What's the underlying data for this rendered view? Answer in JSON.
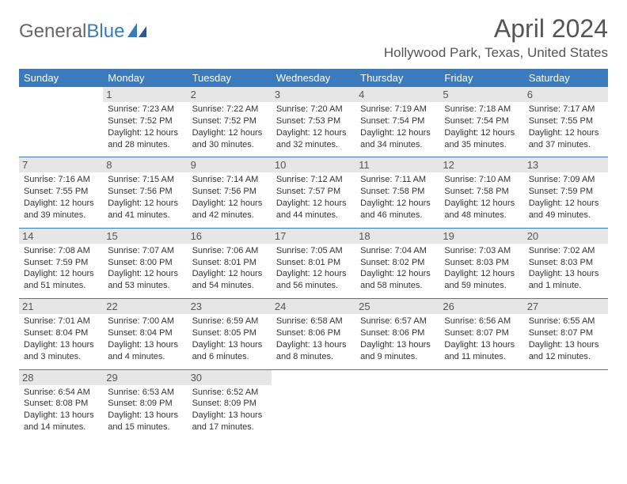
{
  "logo": {
    "part1": "General",
    "part2": "Blue"
  },
  "title": "April 2024",
  "location": "Hollywood Park, Texas, United States",
  "colors": {
    "header_bg": "#3a7abd",
    "header_text": "#ffffff",
    "daynum_bg": "#e6e6e6",
    "rule": "#3a7abd",
    "text": "#333333",
    "title_color": "#555555"
  },
  "weekdays": [
    "Sunday",
    "Monday",
    "Tuesday",
    "Wednesday",
    "Thursday",
    "Friday",
    "Saturday"
  ],
  "weeks": [
    [
      {
        "n": "",
        "sr": "",
        "ss": "",
        "dl": ""
      },
      {
        "n": "1",
        "sr": "Sunrise: 7:23 AM",
        "ss": "Sunset: 7:52 PM",
        "dl": "Daylight: 12 hours and 28 minutes."
      },
      {
        "n": "2",
        "sr": "Sunrise: 7:22 AM",
        "ss": "Sunset: 7:52 PM",
        "dl": "Daylight: 12 hours and 30 minutes."
      },
      {
        "n": "3",
        "sr": "Sunrise: 7:20 AM",
        "ss": "Sunset: 7:53 PM",
        "dl": "Daylight: 12 hours and 32 minutes."
      },
      {
        "n": "4",
        "sr": "Sunrise: 7:19 AM",
        "ss": "Sunset: 7:54 PM",
        "dl": "Daylight: 12 hours and 34 minutes."
      },
      {
        "n": "5",
        "sr": "Sunrise: 7:18 AM",
        "ss": "Sunset: 7:54 PM",
        "dl": "Daylight: 12 hours and 35 minutes."
      },
      {
        "n": "6",
        "sr": "Sunrise: 7:17 AM",
        "ss": "Sunset: 7:55 PM",
        "dl": "Daylight: 12 hours and 37 minutes."
      }
    ],
    [
      {
        "n": "7",
        "sr": "Sunrise: 7:16 AM",
        "ss": "Sunset: 7:55 PM",
        "dl": "Daylight: 12 hours and 39 minutes."
      },
      {
        "n": "8",
        "sr": "Sunrise: 7:15 AM",
        "ss": "Sunset: 7:56 PM",
        "dl": "Daylight: 12 hours and 41 minutes."
      },
      {
        "n": "9",
        "sr": "Sunrise: 7:14 AM",
        "ss": "Sunset: 7:56 PM",
        "dl": "Daylight: 12 hours and 42 minutes."
      },
      {
        "n": "10",
        "sr": "Sunrise: 7:12 AM",
        "ss": "Sunset: 7:57 PM",
        "dl": "Daylight: 12 hours and 44 minutes."
      },
      {
        "n": "11",
        "sr": "Sunrise: 7:11 AM",
        "ss": "Sunset: 7:58 PM",
        "dl": "Daylight: 12 hours and 46 minutes."
      },
      {
        "n": "12",
        "sr": "Sunrise: 7:10 AM",
        "ss": "Sunset: 7:58 PM",
        "dl": "Daylight: 12 hours and 48 minutes."
      },
      {
        "n": "13",
        "sr": "Sunrise: 7:09 AM",
        "ss": "Sunset: 7:59 PM",
        "dl": "Daylight: 12 hours and 49 minutes."
      }
    ],
    [
      {
        "n": "14",
        "sr": "Sunrise: 7:08 AM",
        "ss": "Sunset: 7:59 PM",
        "dl": "Daylight: 12 hours and 51 minutes."
      },
      {
        "n": "15",
        "sr": "Sunrise: 7:07 AM",
        "ss": "Sunset: 8:00 PM",
        "dl": "Daylight: 12 hours and 53 minutes."
      },
      {
        "n": "16",
        "sr": "Sunrise: 7:06 AM",
        "ss": "Sunset: 8:01 PM",
        "dl": "Daylight: 12 hours and 54 minutes."
      },
      {
        "n": "17",
        "sr": "Sunrise: 7:05 AM",
        "ss": "Sunset: 8:01 PM",
        "dl": "Daylight: 12 hours and 56 minutes."
      },
      {
        "n": "18",
        "sr": "Sunrise: 7:04 AM",
        "ss": "Sunset: 8:02 PM",
        "dl": "Daylight: 12 hours and 58 minutes."
      },
      {
        "n": "19",
        "sr": "Sunrise: 7:03 AM",
        "ss": "Sunset: 8:03 PM",
        "dl": "Daylight: 12 hours and 59 minutes."
      },
      {
        "n": "20",
        "sr": "Sunrise: 7:02 AM",
        "ss": "Sunset: 8:03 PM",
        "dl": "Daylight: 13 hours and 1 minute."
      }
    ],
    [
      {
        "n": "21",
        "sr": "Sunrise: 7:01 AM",
        "ss": "Sunset: 8:04 PM",
        "dl": "Daylight: 13 hours and 3 minutes."
      },
      {
        "n": "22",
        "sr": "Sunrise: 7:00 AM",
        "ss": "Sunset: 8:04 PM",
        "dl": "Daylight: 13 hours and 4 minutes."
      },
      {
        "n": "23",
        "sr": "Sunrise: 6:59 AM",
        "ss": "Sunset: 8:05 PM",
        "dl": "Daylight: 13 hours and 6 minutes."
      },
      {
        "n": "24",
        "sr": "Sunrise: 6:58 AM",
        "ss": "Sunset: 8:06 PM",
        "dl": "Daylight: 13 hours and 8 minutes."
      },
      {
        "n": "25",
        "sr": "Sunrise: 6:57 AM",
        "ss": "Sunset: 8:06 PM",
        "dl": "Daylight: 13 hours and 9 minutes."
      },
      {
        "n": "26",
        "sr": "Sunrise: 6:56 AM",
        "ss": "Sunset: 8:07 PM",
        "dl": "Daylight: 13 hours and 11 minutes."
      },
      {
        "n": "27",
        "sr": "Sunrise: 6:55 AM",
        "ss": "Sunset: 8:07 PM",
        "dl": "Daylight: 13 hours and 12 minutes."
      }
    ],
    [
      {
        "n": "28",
        "sr": "Sunrise: 6:54 AM",
        "ss": "Sunset: 8:08 PM",
        "dl": "Daylight: 13 hours and 14 minutes."
      },
      {
        "n": "29",
        "sr": "Sunrise: 6:53 AM",
        "ss": "Sunset: 8:09 PM",
        "dl": "Daylight: 13 hours and 15 minutes."
      },
      {
        "n": "30",
        "sr": "Sunrise: 6:52 AM",
        "ss": "Sunset: 8:09 PM",
        "dl": "Daylight: 13 hours and 17 minutes."
      },
      {
        "n": "",
        "sr": "",
        "ss": "",
        "dl": ""
      },
      {
        "n": "",
        "sr": "",
        "ss": "",
        "dl": ""
      },
      {
        "n": "",
        "sr": "",
        "ss": "",
        "dl": ""
      },
      {
        "n": "",
        "sr": "",
        "ss": "",
        "dl": ""
      }
    ]
  ]
}
